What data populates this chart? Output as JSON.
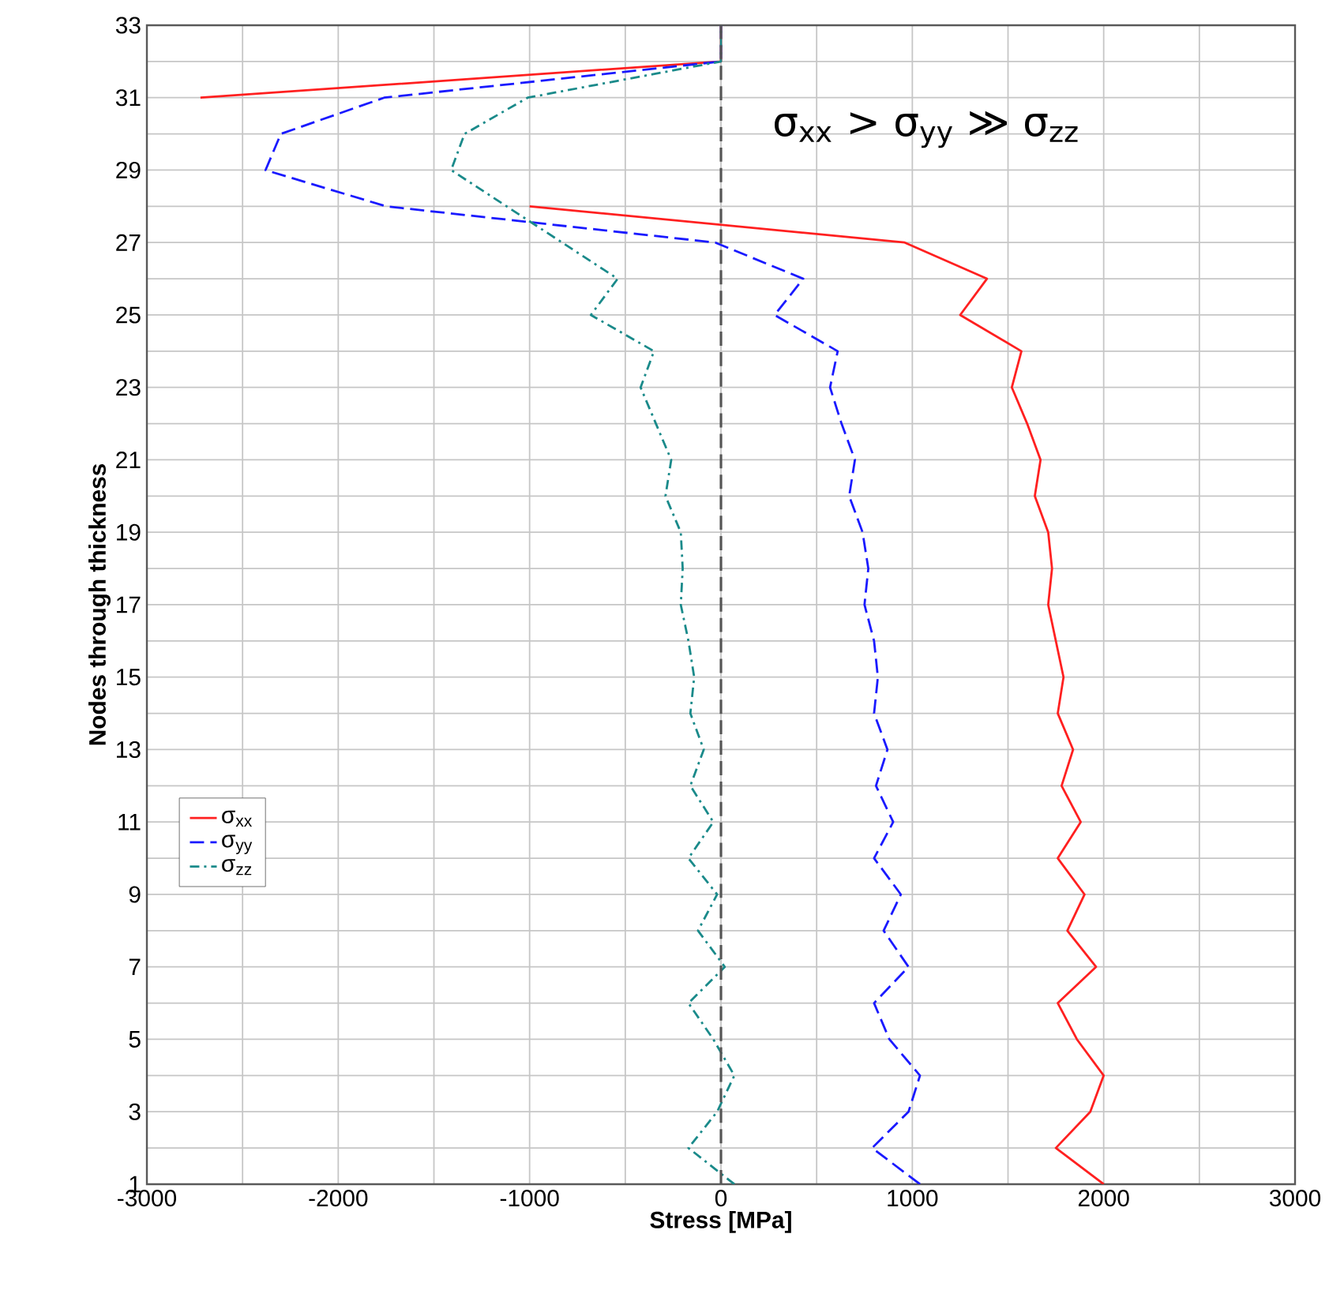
{
  "chart_data": {
    "type": "line",
    "orientation": "horizontal",
    "xlabel": "Stress [MPa]",
    "ylabel": "Nodes through thickness",
    "x": [
      1,
      2,
      3,
      4,
      5,
      6,
      7,
      8,
      9,
      10,
      11,
      12,
      13,
      14,
      15,
      16,
      17,
      18,
      19,
      20,
      21,
      22,
      23,
      24,
      25,
      26,
      27,
      28,
      29,
      30,
      31,
      32,
      33
    ],
    "series": [
      {
        "name": "σ$_{xx}$",
        "color": "#ff2020",
        "line_style": "solid",
        "values": [
          2000,
          1750,
          1930,
          2000,
          1860,
          1760,
          1960,
          1810,
          1900,
          1760,
          1880,
          1780,
          1840,
          1760,
          1790,
          1750,
          1710,
          1730,
          1710,
          1640,
          1670,
          1600,
          1520,
          1570,
          1250,
          1390,
          960,
          -1000,
          null,
          null,
          -2720,
          0,
          0
        ]
      },
      {
        "name": "σ$_{yy}$",
        "color": "#1a1aff",
        "line_style": "dashed",
        "values": [
          1040,
          790,
          980,
          1040,
          880,
          800,
          980,
          850,
          940,
          800,
          900,
          810,
          870,
          800,
          820,
          800,
          750,
          770,
          740,
          670,
          700,
          630,
          570,
          610,
          280,
          430,
          -30,
          -1750,
          -2380,
          -2300,
          -1760,
          0,
          0
        ]
      },
      {
        "name": "σ$_{zz}$",
        "color": "#1a8a8a",
        "line_style": "dashdot",
        "values": [
          70,
          -170,
          -20,
          70,
          -40,
          -170,
          20,
          -120,
          -20,
          -170,
          -40,
          -160,
          -90,
          -160,
          -140,
          -170,
          -210,
          -200,
          -210,
          -290,
          -260,
          -340,
          -420,
          -350,
          -680,
          -540,
          -830,
          -1120,
          -1410,
          -1340,
          -1010,
          0,
          0
        ]
      }
    ],
    "xlim": [
      -3000,
      3000
    ],
    "xticks": [
      -3000,
      {
        "value": -2500,
        "label": null
      },
      -2000,
      {
        "value": -1500,
        "label": null
      },
      -1000,
      {
        "value": -500,
        "label": null
      },
      0,
      {
        "value": 500,
        "label": null
      },
      1000,
      {
        "value": 1500,
        "label": null
      },
      2000,
      {
        "value": 2500,
        "label": null
      },
      3000
    ],
    "ylim": [
      1,
      33
    ],
    "yticks": [
      1,
      {
        "value": 2,
        "label": null
      },
      3,
      {
        "value": 4,
        "label": null
      },
      5,
      {
        "value": 6,
        "label": null
      },
      7,
      {
        "value": 8,
        "label": null
      },
      9,
      {
        "value": 10,
        "label": null
      },
      11,
      {
        "value": 12,
        "label": null
      },
      13,
      {
        "value": 14,
        "label": null
      },
      15,
      {
        "value": 16,
        "label": null
      },
      17,
      {
        "value": 18,
        "label": null
      },
      19,
      {
        "value": 20,
        "label": null
      },
      21,
      {
        "value": 22,
        "label": null
      },
      23,
      {
        "value": 24,
        "label": null
      },
      25,
      {
        "value": 26,
        "label": null
      },
      27,
      {
        "value": 28,
        "label": null
      },
      29,
      {
        "value": 30,
        "label": null
      },
      31,
      {
        "value": 32,
        "label": null
      },
      33
    ],
    "grid": true,
    "legend": "left",
    "marker": "none",
    "ref_lines": [
      {
        "axis": "x",
        "value": 0,
        "color": "#555555",
        "line_style": "dashed"
      }
    ],
    "annotations": [
      "σ$_{xx}$ > σ$_{yy}$ ≫ σ$_{zz}$"
    ]
  }
}
